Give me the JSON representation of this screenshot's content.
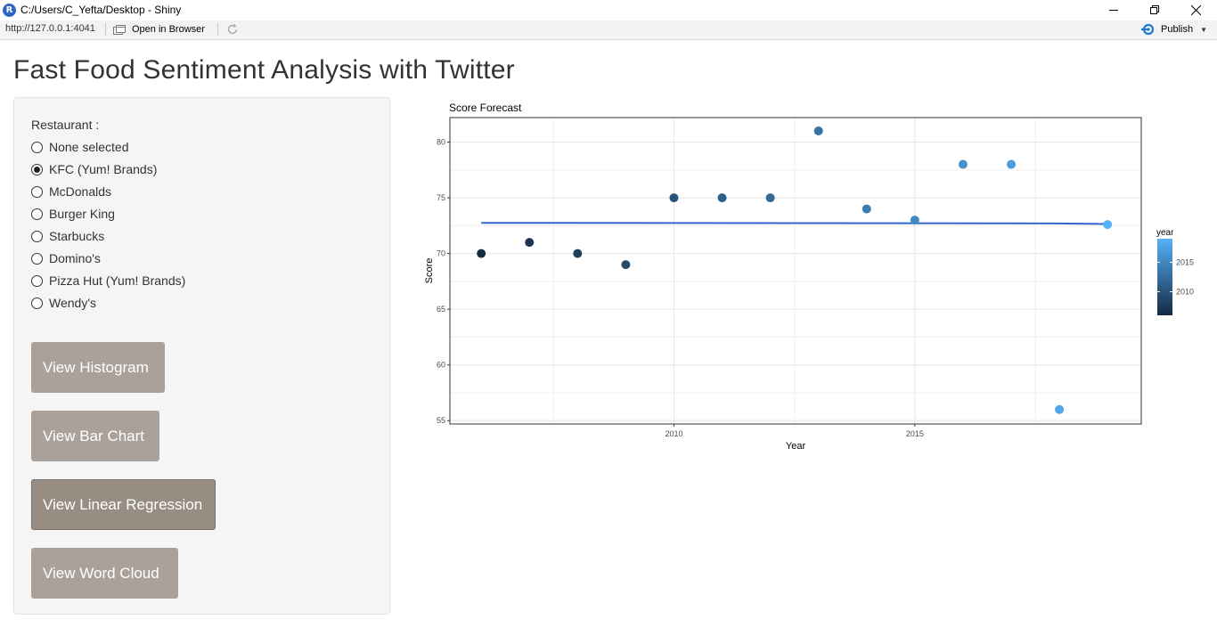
{
  "window": {
    "title": "C:/Users/C_Yefta/Desktop - Shiny",
    "logo_letter": "R"
  },
  "urlbar": {
    "url": "http://127.0.0.1:4041",
    "open_in_browser_label": "Open in Browser",
    "publish_label": "Publish"
  },
  "app": {
    "title": "Fast Food Sentiment Analysis with Twitter"
  },
  "sidebar": {
    "radio_label": "Restaurant :",
    "selected": "KFC (Yum! Brands)",
    "options": [
      "None selected",
      "KFC (Yum! Brands)",
      "McDonalds",
      "Burger King",
      "Starbucks",
      "Domino's",
      "Pizza Hut (Yum! Brands)",
      "Wendy's"
    ],
    "buttons": [
      "View Histogram",
      "View Bar Chart",
      "View Linear Regression",
      "View Word Cloud"
    ],
    "active_button": "View Linear Regression"
  },
  "chart_data": {
    "type": "scatter",
    "title": "Score Forecast",
    "xlabel": "Year",
    "ylabel": "Score",
    "xlim": [
      2005.35,
      2019.7
    ],
    "ylim": [
      54.7,
      82.2
    ],
    "x_ticks": [
      2010,
      2015
    ],
    "y_ticks": [
      55,
      60,
      65,
      70,
      75,
      80
    ],
    "grid": true,
    "points": [
      {
        "x": 2006,
        "y": 70
      },
      {
        "x": 2007,
        "y": 71
      },
      {
        "x": 2008,
        "y": 70
      },
      {
        "x": 2009,
        "y": 69
      },
      {
        "x": 2010,
        "y": 75
      },
      {
        "x": 2011,
        "y": 75
      },
      {
        "x": 2012,
        "y": 75
      },
      {
        "x": 2013,
        "y": 81
      },
      {
        "x": 2014,
        "y": 74
      },
      {
        "x": 2015,
        "y": 73
      },
      {
        "x": 2016,
        "y": 78
      },
      {
        "x": 2017,
        "y": 78
      },
      {
        "x": 2018,
        "y": 56
      },
      {
        "x": 2019,
        "y": 72.6
      }
    ],
    "trend_line": [
      {
        "x": 2006,
        "y": 72.75
      },
      {
        "x": 2018,
        "y": 72.7
      },
      {
        "x": 2019,
        "y": 72.65
      }
    ],
    "trend_color": "#3366cc",
    "legend": {
      "title": "year",
      "placement": "right",
      "ticks": [
        2010,
        2015
      ],
      "range": [
        2006,
        2019
      ],
      "color_low": "#132b43",
      "color_high": "#56b1f7"
    }
  }
}
